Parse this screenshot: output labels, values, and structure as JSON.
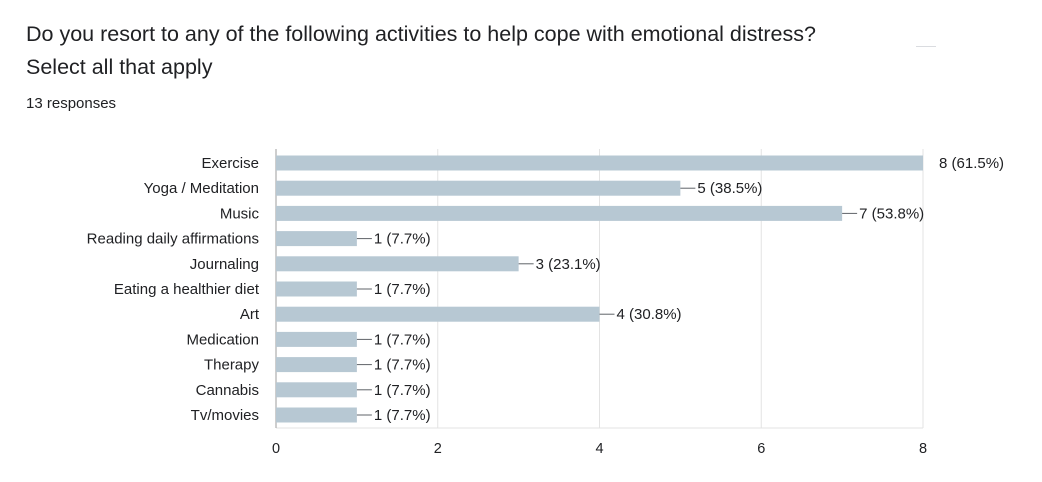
{
  "question": {
    "title_line1": "Do you resort to any of the following activities to help cope with emotional distress?",
    "title_line2": "Select all that apply",
    "responses": "13 responses"
  },
  "chart_data": {
    "type": "bar",
    "orientation": "horizontal",
    "categories": [
      "Exercise",
      "Yoga / Meditation",
      "Music",
      "Reading daily affirmations",
      "Journaling",
      "Eating a healthier diet",
      "Art",
      "Medication",
      "Therapy",
      "Cannabis",
      "Tv/movies"
    ],
    "values": [
      8,
      5,
      7,
      1,
      3,
      1,
      4,
      1,
      1,
      1,
      1
    ],
    "data_labels": [
      "8 (61.5%)",
      "5 (38.5%)",
      "7 (53.8%)",
      "1 (7.7%)",
      "3 (23.1%)",
      "1 (7.7%)",
      "4 (30.8%)",
      "1 (7.7%)",
      "1 (7.7%)",
      "1 (7.7%)",
      "1 (7.7%)"
    ],
    "xlim": [
      0,
      8
    ],
    "xticks": [
      0,
      2,
      4,
      6,
      8
    ],
    "grid": true,
    "bar_color": "#b7c8d3",
    "grid_color": "#e3e3e3",
    "axis_color": "#9e9e9e",
    "text_color": "#202124"
  }
}
